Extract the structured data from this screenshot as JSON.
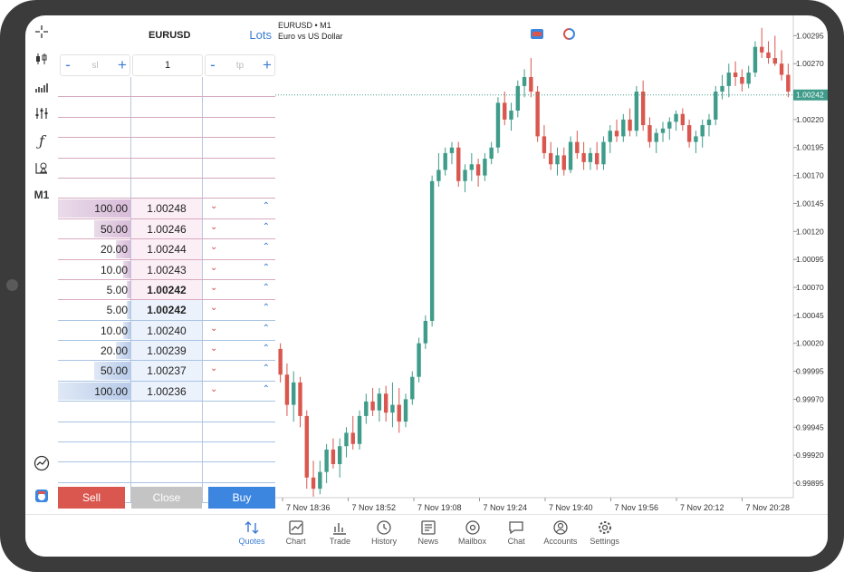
{
  "toolbar": {
    "items": [
      "crosshair-icon",
      "candles-icon",
      "volume-icon",
      "settings-sliders-icon",
      "function-icon",
      "objects-icon"
    ],
    "timeframe": "M1"
  },
  "dom": {
    "symbol": "EURUSD",
    "lots_label": "Lots",
    "sl_placeholder": "sl",
    "tp_placeholder": "tp",
    "volume_value": "1",
    "asks": [
      {
        "volume": "100.00",
        "price": "1.00248",
        "bar": 1.0
      },
      {
        "volume": "50.00",
        "price": "1.00246",
        "bar": 0.5
      },
      {
        "volume": "20.00",
        "price": "1.00244",
        "bar": 0.2
      },
      {
        "volume": "10.00",
        "price": "1.00243",
        "bar": 0.1
      },
      {
        "volume": "5.00",
        "price": "1.00242",
        "bar": 0.05
      }
    ],
    "bids": [
      {
        "volume": "5.00",
        "price": "1.00242",
        "bar": 0.05
      },
      {
        "volume": "10.00",
        "price": "1.00240",
        "bar": 0.1
      },
      {
        "volume": "20.00",
        "price": "1.00239",
        "bar": 0.2
      },
      {
        "volume": "50.00",
        "price": "1.00237",
        "bar": 0.5
      },
      {
        "volume": "100.00",
        "price": "1.00236",
        "bar": 1.0
      }
    ],
    "sell_label": "Sell",
    "close_label": "Close",
    "buy_label": "Buy",
    "colors": {
      "sell": "#d9574e",
      "close": "#c4c4c4",
      "buy": "#3d86e0"
    }
  },
  "chart": {
    "title": "EURUSD • M1",
    "subtitle": "Euro vs US Dollar",
    "current_price": "1.00242",
    "bull_color": "#3f9c8a",
    "bear_color": "#d9574e"
  },
  "chart_data": {
    "type": "candlestick",
    "y_ticks": [
      "1.00295",
      "1.00270",
      "1.00220",
      "1.00195",
      "1.00170",
      "1.00145",
      "1.00120",
      "1.00095",
      "1.00070",
      "1.00045",
      "1.00020",
      "0.99995",
      "0.99970",
      "0.99945",
      "0.99920",
      "0.99895"
    ],
    "x_ticks": [
      "7 Nov 18:36",
      "7 Nov 18:52",
      "7 Nov 19:08",
      "7 Nov 19:24",
      "7 Nov 19:40",
      "7 Nov 19:56",
      "7 Nov 20:12",
      "7 Nov 20:28"
    ],
    "ylim": [
      0.99882,
      1.00305
    ],
    "current": 1.00242,
    "candles": [
      [
        1.00015,
        1.0002,
        0.99985,
        0.99992
      ],
      [
        0.99992,
        1.00002,
        0.99955,
        0.99965
      ],
      [
        0.99965,
        0.99995,
        0.9995,
        0.99985
      ],
      [
        0.99985,
        0.9999,
        0.99945,
        0.99955
      ],
      [
        0.99955,
        0.9996,
        0.9989,
        0.999
      ],
      [
        0.999,
        0.99915,
        0.99883,
        0.9989
      ],
      [
        0.9989,
        0.99915,
        0.99885,
        0.99905
      ],
      [
        0.99905,
        0.9993,
        0.99895,
        0.99925
      ],
      [
        0.99925,
        0.99935,
        0.99908,
        0.99912
      ],
      [
        0.99912,
        0.99935,
        0.999,
        0.99928
      ],
      [
        0.99928,
        0.99945,
        0.99918,
        0.9994
      ],
      [
        0.9994,
        0.99955,
        0.99925,
        0.9993
      ],
      [
        0.9993,
        0.9996,
        0.99925,
        0.99955
      ],
      [
        0.99955,
        0.99975,
        0.99948,
        0.99968
      ],
      [
        0.99968,
        0.9998,
        0.99955,
        0.9996
      ],
      [
        0.9996,
        0.9998,
        0.9995,
        0.99975
      ],
      [
        0.99975,
        0.99982,
        0.9995,
        0.99958
      ],
      [
        0.99958,
        0.99985,
        0.99945,
        0.99965
      ],
      [
        0.99965,
        0.9998,
        0.9994,
        0.9995
      ],
      [
        0.9995,
        0.99975,
        0.99945,
        0.9997
      ],
      [
        0.9997,
        0.99995,
        0.99965,
        0.9999
      ],
      [
        0.9999,
        1.00025,
        0.99985,
        1.0002
      ],
      [
        1.0002,
        1.00045,
        1.00015,
        1.0004
      ],
      [
        1.0004,
        1.0017,
        1.00035,
        1.00165
      ],
      [
        1.00165,
        1.0019,
        1.0016,
        1.00175
      ],
      [
        1.00175,
        1.00195,
        1.0017,
        1.0019
      ],
      [
        1.0019,
        1.002,
        1.0018,
        1.00195
      ],
      [
        1.00195,
        1.002,
        1.0016,
        1.00165
      ],
      [
        1.00165,
        1.0018,
        1.00155,
        1.00175
      ],
      [
        1.00175,
        1.0019,
        1.00165,
        1.0018
      ],
      [
        1.0018,
        1.00185,
        1.0016,
        1.0017
      ],
      [
        1.0017,
        1.0019,
        1.00165,
        1.00185
      ],
      [
        1.00185,
        1.002,
        1.0018,
        1.00195
      ],
      [
        1.00195,
        1.0024,
        1.0019,
        1.00235
      ],
      [
        1.00235,
        1.00245,
        1.00215,
        1.0022
      ],
      [
        1.0022,
        1.00235,
        1.0021,
        1.00228
      ],
      [
        1.00228,
        1.00255,
        1.00222,
        1.0025
      ],
      [
        1.0025,
        1.00265,
        1.0024,
        1.00258
      ],
      [
        1.00258,
        1.00275,
        1.0024,
        1.00245
      ],
      [
        1.00245,
        1.0025,
        1.002,
        1.00205
      ],
      [
        1.00205,
        1.00215,
        1.00185,
        1.0019
      ],
      [
        1.0019,
        1.002,
        1.00175,
        1.0018
      ],
      [
        1.0018,
        1.00195,
        1.0017,
        1.00188
      ],
      [
        1.00188,
        1.00195,
        1.0017,
        1.00175
      ],
      [
        1.00175,
        1.00205,
        1.00172,
        1.002
      ],
      [
        1.002,
        1.0021,
        1.00185,
        1.0019
      ],
      [
        1.0019,
        1.002,
        1.00175,
        1.00182
      ],
      [
        1.00182,
        1.00195,
        1.00175,
        1.0019
      ],
      [
        1.0019,
        1.002,
        1.00175,
        1.0018
      ],
      [
        1.0018,
        1.00205,
        1.00175,
        1.002
      ],
      [
        1.002,
        1.00215,
        1.0019,
        1.0021
      ],
      [
        1.0021,
        1.0022,
        1.002,
        1.00205
      ],
      [
        1.00205,
        1.00225,
        1.002,
        1.0022
      ],
      [
        1.0022,
        1.0023,
        1.00205,
        1.0021
      ],
      [
        1.0021,
        1.0025,
        1.00205,
        1.00245
      ],
      [
        1.00245,
        1.00255,
        1.0021,
        1.00215
      ],
      [
        1.00215,
        1.00222,
        1.00195,
        1.002
      ],
      [
        1.002,
        1.00212,
        1.0019,
        1.00208
      ],
      [
        1.00208,
        1.00218,
        1.002,
        1.00212
      ],
      [
        1.00212,
        1.00222,
        1.00202,
        1.00218
      ],
      [
        1.00218,
        1.00228,
        1.0021,
        1.00225
      ],
      [
        1.00225,
        1.0023,
        1.0021,
        1.00215
      ],
      [
        1.00215,
        1.0022,
        1.00195,
        1.002
      ],
      [
        1.002,
        1.0021,
        1.0019,
        1.00205
      ],
      [
        1.00205,
        1.0022,
        1.00195,
        1.00215
      ],
      [
        1.00215,
        1.00225,
        1.00205,
        1.0022
      ],
      [
        1.0022,
        1.0025,
        1.00215,
        1.00245
      ],
      [
        1.00245,
        1.0026,
        1.00238,
        1.0025
      ],
      [
        1.0025,
        1.0027,
        1.0024,
        1.00262
      ],
      [
        1.00262,
        1.00272,
        1.0025,
        1.00258
      ],
      [
        1.00258,
        1.00265,
        1.00245,
        1.00252
      ],
      [
        1.00252,
        1.00268,
        1.00248,
        1.00262
      ],
      [
        1.00262,
        1.0029,
        1.00258,
        1.00285
      ],
      [
        1.00285,
        1.00302,
        1.00275,
        1.0028
      ],
      [
        1.0028,
        1.0029,
        1.0027,
        1.00275
      ],
      [
        1.00275,
        1.00295,
        1.00268,
        1.0027
      ],
      [
        1.0027,
        1.00282,
        1.00255,
        1.0026
      ],
      [
        1.0026,
        1.0027,
        1.0024,
        1.00245
      ]
    ]
  },
  "nav": {
    "items": [
      {
        "label": "Quotes",
        "icon": "quotes-icon",
        "active": true
      },
      {
        "label": "Chart",
        "icon": "chart-icon",
        "active": false
      },
      {
        "label": "Trade",
        "icon": "trade-icon",
        "active": false
      },
      {
        "label": "History",
        "icon": "history-icon",
        "active": false
      },
      {
        "label": "News",
        "icon": "news-icon",
        "active": false
      },
      {
        "label": "Mailbox",
        "icon": "mailbox-icon",
        "active": false
      },
      {
        "label": "Chat",
        "icon": "chat-icon",
        "active": false
      },
      {
        "label": "Accounts",
        "icon": "accounts-icon",
        "active": false
      },
      {
        "label": "Settings",
        "icon": "settings-icon",
        "active": false
      }
    ]
  }
}
